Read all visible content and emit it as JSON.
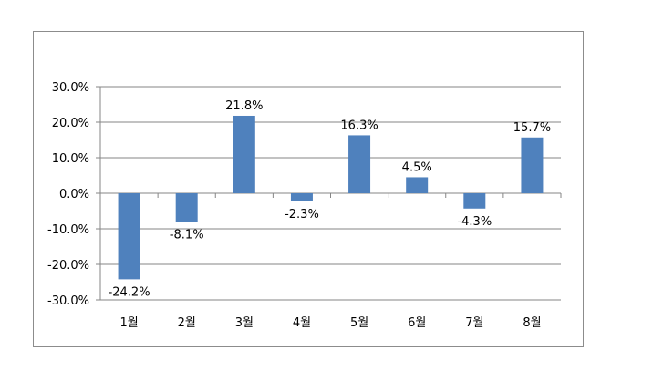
{
  "chart_data": {
    "type": "bar",
    "categories": [
      "1월",
      "2월",
      "3월",
      "4월",
      "5월",
      "6월",
      "7월",
      "8월"
    ],
    "values": [
      -24.2,
      -8.1,
      21.8,
      -2.3,
      16.3,
      4.5,
      -4.3,
      15.7
    ],
    "data_labels": [
      "-24.2%",
      "-8.1%",
      "21.8%",
      "-2.3%",
      "16.3%",
      "4.5%",
      "-4.3%",
      "15.7%"
    ],
    "ylim": [
      -30,
      30
    ],
    "y_ticks": [
      30,
      20,
      10,
      0,
      -10,
      -20,
      -30
    ],
    "y_tick_labels": [
      "30.0%",
      "20.0%",
      "10.0%",
      "0.0%",
      "-10.0%",
      "-20.0%",
      "-30.0%"
    ],
    "grid": true,
    "legend": "none",
    "title": "",
    "xlabel": "",
    "ylabel": "",
    "bar_color": "#4f81bd",
    "grid_color": "#868686"
  }
}
